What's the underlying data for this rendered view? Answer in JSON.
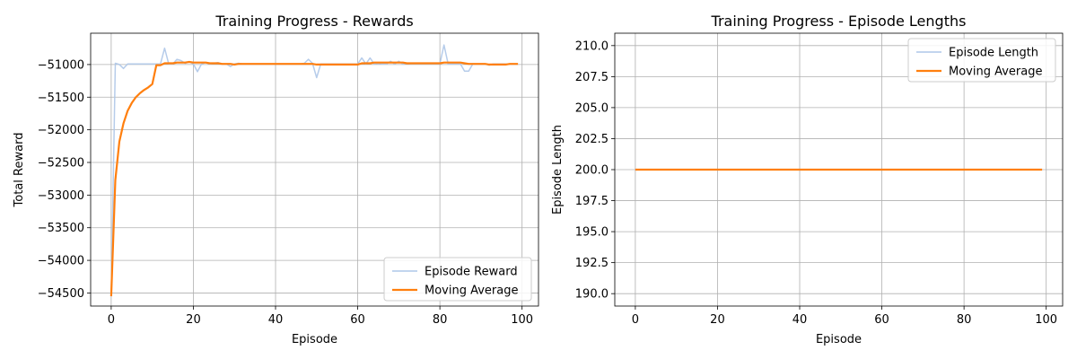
{
  "chart_data": [
    {
      "type": "line",
      "title": "Training Progress - Rewards",
      "xlabel": "Episode",
      "ylabel": "Total Reward",
      "xlim": [
        -5,
        104
      ],
      "ylim": [
        -54700,
        -50520
      ],
      "xticks": [
        0,
        20,
        40,
        60,
        80,
        100
      ],
      "yticks": [
        -54500,
        -54000,
        -53500,
        -53000,
        -52500,
        -52000,
        -51500,
        -51000
      ],
      "grid": true,
      "legend_position": "lower-right",
      "series": [
        {
          "name": "Episode Reward",
          "color": "#aec7e8",
          "style": "thin-translucent",
          "x": [
            0,
            1,
            2,
            3,
            4,
            5,
            6,
            7,
            8,
            9,
            10,
            11,
            12,
            13,
            14,
            15,
            16,
            17,
            18,
            19,
            20,
            21,
            22,
            23,
            24,
            25,
            26,
            27,
            28,
            29,
            30,
            31,
            32,
            33,
            34,
            35,
            36,
            37,
            38,
            39,
            40,
            41,
            42,
            43,
            44,
            45,
            46,
            47,
            48,
            49,
            50,
            51,
            52,
            53,
            54,
            55,
            56,
            57,
            58,
            59,
            60,
            61,
            62,
            63,
            64,
            65,
            66,
            67,
            68,
            69,
            70,
            71,
            72,
            73,
            74,
            75,
            76,
            77,
            78,
            79,
            80,
            81,
            82,
            83,
            84,
            85,
            86,
            87,
            88,
            89,
            90,
            91,
            92,
            93,
            94,
            95,
            96,
            97,
            98,
            99
          ],
          "y": [
            -54550,
            -50980,
            -51000,
            -51060,
            -50990,
            -50990,
            -50990,
            -50990,
            -50990,
            -50990,
            -50990,
            -50990,
            -50990,
            -50750,
            -50990,
            -50990,
            -50920,
            -50940,
            -50980,
            -50960,
            -50990,
            -51110,
            -50990,
            -50970,
            -50990,
            -50980,
            -50970,
            -50990,
            -50990,
            -51030,
            -50990,
            -50980,
            -50990,
            -50990,
            -50990,
            -50990,
            -50990,
            -50990,
            -50990,
            -50990,
            -50990,
            -50990,
            -50990,
            -50990,
            -50990,
            -50990,
            -50990,
            -50980,
            -50920,
            -50980,
            -51200,
            -50990,
            -50990,
            -50990,
            -50990,
            -50990,
            -50990,
            -50990,
            -50990,
            -50990,
            -50990,
            -50900,
            -50990,
            -50900,
            -50990,
            -50980,
            -50990,
            -50990,
            -50950,
            -50990,
            -50950,
            -50990,
            -50980,
            -50990,
            -50990,
            -50990,
            -50990,
            -50990,
            -50990,
            -50990,
            -50990,
            -50700,
            -50990,
            -50990,
            -50990,
            -50990,
            -51100,
            -51100,
            -50990,
            -50990,
            -50990,
            -50990,
            -51010,
            -50990,
            -50990,
            -50990,
            -50990,
            -50990,
            -50990,
            -50990
          ]
        },
        {
          "name": "Moving Average",
          "color": "#ff7f0e",
          "style": "thick",
          "x": [
            0,
            1,
            2,
            3,
            4,
            5,
            6,
            7,
            8,
            9,
            10,
            11,
            12,
            13,
            14,
            15,
            16,
            17,
            18,
            19,
            20,
            21,
            22,
            23,
            24,
            25,
            26,
            27,
            28,
            29,
            30,
            31,
            32,
            33,
            34,
            35,
            36,
            37,
            38,
            39,
            40,
            41,
            42,
            43,
            44,
            45,
            46,
            47,
            48,
            49,
            50,
            51,
            52,
            53,
            54,
            55,
            56,
            57,
            58,
            59,
            60,
            61,
            62,
            63,
            64,
            65,
            66,
            67,
            68,
            69,
            70,
            71,
            72,
            73,
            74,
            75,
            76,
            77,
            78,
            79,
            80,
            81,
            82,
            83,
            84,
            85,
            86,
            87,
            88,
            89,
            90,
            91,
            92,
            93,
            94,
            95,
            96,
            97,
            98,
            99
          ],
          "y": [
            -54550,
            -52770,
            -52180,
            -51900,
            -51710,
            -51590,
            -51500,
            -51440,
            -51390,
            -51350,
            -51300,
            -51010,
            -51010,
            -50980,
            -50980,
            -50980,
            -50970,
            -50970,
            -50970,
            -50960,
            -50970,
            -50970,
            -50970,
            -50970,
            -50980,
            -50980,
            -50980,
            -50990,
            -50990,
            -50990,
            -51000,
            -50990,
            -50990,
            -50990,
            -50990,
            -50990,
            -50990,
            -50990,
            -50990,
            -50990,
            -50990,
            -50990,
            -50990,
            -50990,
            -50990,
            -50990,
            -50990,
            -50990,
            -50990,
            -50990,
            -51000,
            -51000,
            -51000,
            -51000,
            -51000,
            -51000,
            -51000,
            -51000,
            -51000,
            -51000,
            -51000,
            -50980,
            -50980,
            -50980,
            -50970,
            -50970,
            -50970,
            -50970,
            -50970,
            -50970,
            -50970,
            -50970,
            -50980,
            -50980,
            -50980,
            -50980,
            -50980,
            -50980,
            -50980,
            -50980,
            -50980,
            -50970,
            -50970,
            -50970,
            -50970,
            -50970,
            -50980,
            -50990,
            -50990,
            -50990,
            -50990,
            -50990,
            -51000,
            -51000,
            -51000,
            -51000,
            -51000,
            -50990,
            -50990,
            -50990
          ]
        }
      ]
    },
    {
      "type": "line",
      "title": "Training Progress - Episode Lengths",
      "xlabel": "Episode",
      "ylabel": "Episode Length",
      "xlim": [
        -5,
        104
      ],
      "ylim": [
        189,
        211
      ],
      "xticks": [
        0,
        20,
        40,
        60,
        80,
        100
      ],
      "yticks": [
        190.0,
        192.5,
        195.0,
        197.5,
        200.0,
        202.5,
        205.0,
        207.5,
        210.0
      ],
      "grid": true,
      "legend_position": "upper-right",
      "series": [
        {
          "name": "Episode Length",
          "color": "#aec7e8",
          "style": "thin-translucent",
          "x": [
            0,
            99
          ],
          "y": [
            200,
            200
          ]
        },
        {
          "name": "Moving Average",
          "color": "#ff7f0e",
          "style": "thick",
          "x": [
            0,
            99
          ],
          "y": [
            200,
            200
          ]
        }
      ]
    }
  ]
}
